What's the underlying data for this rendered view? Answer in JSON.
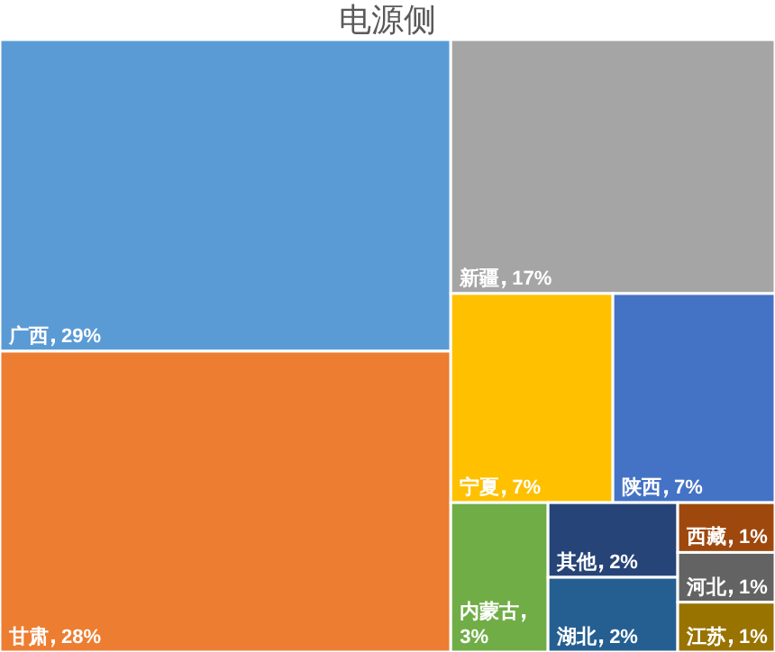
{
  "chart_data": {
    "type": "other",
    "title": "电源侧",
    "categories": [
      "广西",
      "甘肃",
      "新疆",
      "宁夏",
      "陕西",
      "内蒙古",
      "其他",
      "湖北",
      "西藏",
      "河北",
      "江苏"
    ],
    "values": [
      29,
      28,
      17,
      7,
      7,
      3,
      2,
      2,
      1,
      1,
      1
    ],
    "value_labels": [
      "29%",
      "28%",
      "17%",
      "7%",
      "7%",
      "3%",
      "2%",
      "2%",
      "1%",
      "1%",
      "1%"
    ],
    "colors": [
      "#5b9bd5",
      "#ed7d31",
      "#a5a5a5",
      "#ffc000",
      "#4472c4",
      "#70ad47",
      "#264478",
      "#255e91",
      "#9e480e",
      "#636363",
      "#997300"
    ],
    "data_labels": true
  }
}
